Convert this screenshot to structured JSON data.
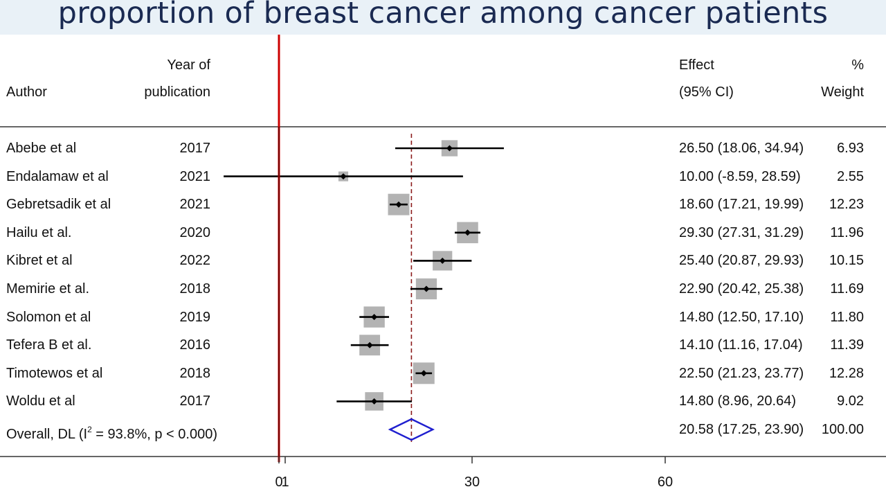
{
  "title": "proportion of breast cancer among cancer patients",
  "headers": {
    "author": "Author",
    "year_line1": "Year of",
    "year_line2": "publication",
    "effect_line1": "Effect",
    "effect_line2": "(95% CI)",
    "weight_line1": "%",
    "weight_line2": "Weight"
  },
  "chart_data": {
    "type": "forest",
    "x_ticks": [
      "0",
      "1",
      "30",
      "60"
    ],
    "null_line": 0,
    "overall_effect_line": 20.58,
    "studies": [
      {
        "author": "Abebe et al",
        "year": "2017",
        "effect": 26.5,
        "lower": 18.06,
        "upper": 34.94,
        "ci_text": "26.50 (18.06, 34.94)",
        "weight": 6.93,
        "weight_text": "6.93"
      },
      {
        "author": "Endalamaw et al",
        "year": "2021",
        "effect": 10.0,
        "lower": -8.59,
        "upper": 28.59,
        "ci_text": "10.00 (-8.59, 28.59)",
        "weight": 2.55,
        "weight_text": "2.55"
      },
      {
        "author": "Gebretsadik et al",
        "year": "2021",
        "effect": 18.6,
        "lower": 17.21,
        "upper": 19.99,
        "ci_text": "18.60 (17.21, 19.99)",
        "weight": 12.23,
        "weight_text": "12.23"
      },
      {
        "author": "Hailu et al.",
        "year": "2020",
        "effect": 29.3,
        "lower": 27.31,
        "upper": 31.29,
        "ci_text": "29.30 (27.31, 31.29)",
        "weight": 11.96,
        "weight_text": "11.96"
      },
      {
        "author": "Kibret et al",
        "year": "2022",
        "effect": 25.4,
        "lower": 20.87,
        "upper": 29.93,
        "ci_text": "25.40 (20.87, 29.93)",
        "weight": 10.15,
        "weight_text": "10.15"
      },
      {
        "author": "Memirie et al.",
        "year": "2018",
        "effect": 22.9,
        "lower": 20.42,
        "upper": 25.38,
        "ci_text": "22.90 (20.42, 25.38)",
        "weight": 11.69,
        "weight_text": "11.69"
      },
      {
        "author": "Solomon et al",
        "year": "2019",
        "effect": 14.8,
        "lower": 12.5,
        "upper": 17.1,
        "ci_text": "14.80 (12.50, 17.10)",
        "weight": 11.8,
        "weight_text": "11.80"
      },
      {
        "author": "Tefera B et al.",
        "year": "2016",
        "effect": 14.1,
        "lower": 11.16,
        "upper": 17.04,
        "ci_text": "14.10 (11.16, 17.04)",
        "weight": 11.39,
        "weight_text": "11.39"
      },
      {
        "author": "Timotewos et al",
        "year": "2018",
        "effect": 22.5,
        "lower": 21.23,
        "upper": 23.77,
        "ci_text": "22.50 (21.23, 23.77)",
        "weight": 12.28,
        "weight_text": "12.28"
      },
      {
        "author": "Woldu et al",
        "year": "2017",
        "effect": 14.8,
        "lower": 8.96,
        "upper": 20.64,
        "ci_text": "14.80 (8.96, 20.64)",
        "weight": 9.02,
        "weight_text": "9.02"
      }
    ],
    "overall": {
      "label_prefix": "Overall, DL (I",
      "label_sup": "2",
      "label_suffix": " = 93.8%, p < 0.000)",
      "effect": 20.58,
      "lower": 17.25,
      "upper": 23.9,
      "ci_text": "20.58 (17.25, 23.90)",
      "weight_text": "100.00"
    },
    "colors": {
      "null_line": "#cc0000",
      "overall_line": "#8b1a1a",
      "box": "#b3b3b3",
      "diamond": "#1f1fcf",
      "title": "#1a2a52"
    }
  }
}
